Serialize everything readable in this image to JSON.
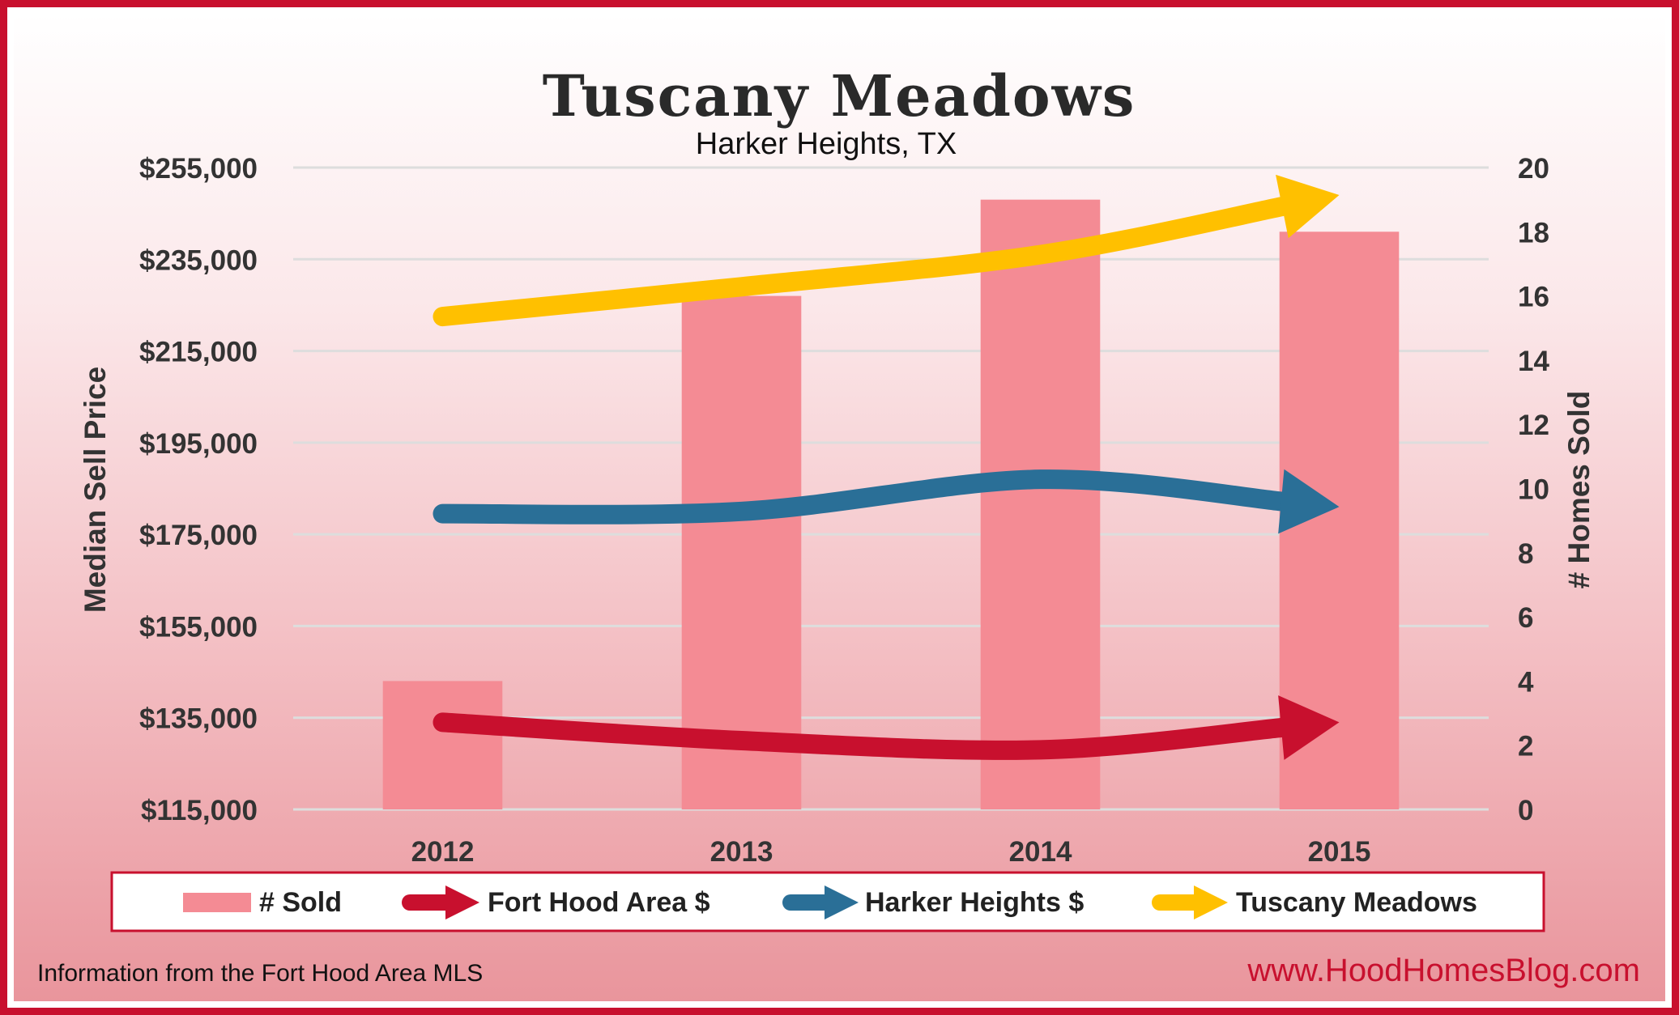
{
  "chart_data": {
    "type": "bar",
    "title": "Tuscany Meadows",
    "subtitle": "Harker Heights, TX",
    "categories": [
      "2012",
      "2013",
      "2014",
      "2015"
    ],
    "ylabel": "Median Sell Price",
    "y2label": "# Homes Sold",
    "ylim": [
      115000,
      255000
    ],
    "y2lim": [
      0,
      20
    ],
    "yticks": [
      "$255,000",
      "$235,000",
      "$215,000",
      "$195,000",
      "$175,000",
      "$155,000",
      "$135,000",
      "$115,000"
    ],
    "y2ticks": [
      "20",
      "18",
      "16",
      "14",
      "12",
      "10",
      "8",
      "6",
      "4",
      "2",
      "0"
    ],
    "grid": true,
    "legend_position": "bottom",
    "series": [
      {
        "name": "# Sold",
        "kind": "bar",
        "axis": "right",
        "color": "#f48b94",
        "values": [
          4,
          16,
          19,
          18
        ]
      },
      {
        "name": "Fort Hood Area $",
        "kind": "arrow-line",
        "axis": "left",
        "color": "#c8102e",
        "values": [
          134000,
          130000,
          128000,
          134000
        ]
      },
      {
        "name": "Harker Heights $",
        "kind": "arrow-line",
        "axis": "left",
        "color": "#2a6f97",
        "values": [
          179500,
          180000,
          187000,
          181000
        ]
      },
      {
        "name": "Tuscany Meadows",
        "kind": "arrow-line",
        "axis": "left",
        "color": "#ffc000",
        "values": [
          222500,
          229000,
          236000,
          249000
        ]
      }
    ]
  },
  "footer": {
    "source": "Information from the Fort Hood Area MLS",
    "website": "www.HoodHomesBlog.com"
  }
}
